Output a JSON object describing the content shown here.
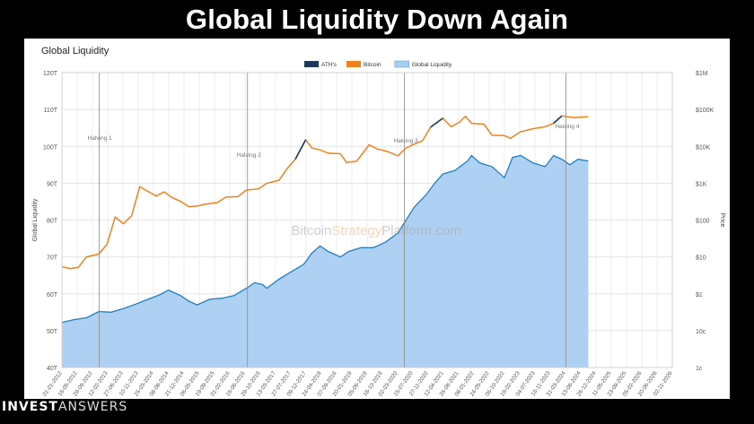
{
  "page": {
    "headline": "Global Liquidity Down Again",
    "brand_bold": "INVEST",
    "brand_light": "ANSWERS"
  },
  "chart_data": {
    "type": "area",
    "title": "Global Liquidity",
    "watermark_parts": [
      "Bitcoin",
      "Strategy",
      "Platform.com"
    ],
    "ylabel_left": "Global Liquidity",
    "ylabel_right": "Price",
    "y_left_ticks": [
      "40T",
      "50T",
      "60T",
      "70T",
      "80T",
      "90T",
      "100T",
      "110T",
      "120T"
    ],
    "y_left_range": [
      40,
      120
    ],
    "y_right_ticks": [
      "1c",
      "10c",
      "$1",
      "$10",
      "$100",
      "$1K",
      "$10K",
      "$100K",
      "$1M"
    ],
    "y_right_scale": "log",
    "x_tick_labels": [
      "01-01-2012",
      "16-05-2012",
      "29-09-2012",
      "12-02-2013",
      "27-06-2013",
      "10-11-2013",
      "25-03-2014",
      "08-08-2014",
      "21-12-2014",
      "06-05-2015",
      "19-09-2015",
      "01-02-2016",
      "16-06-2016",
      "29-10-2016",
      "13-03-2017",
      "27-07-2017",
      "09-12-2017",
      "24-04-2018",
      "07-09-2018",
      "20-01-2019",
      "05-06-2019",
      "18-10-2019",
      "02-03-2020",
      "15-07-2020",
      "27-11-2020",
      "12-04-2021",
      "26-08-2021",
      "08-01-2022",
      "24-05-2022",
      "06-10-2022",
      "19-02-2023",
      "04-07-2023",
      "16-11-2023",
      "31-03-2024",
      "13-08-2024",
      "26-12-2024",
      "11-05-2025",
      "23-09-2025",
      "05-02-2026",
      "20-06-2026",
      "02-11-2026"
    ],
    "legend": [
      {
        "name": "ATH's",
        "color": "#1b3a5c"
      },
      {
        "name": "Bitcoin",
        "color": "#f0821e"
      },
      {
        "name": "Global Liquidity",
        "color": "#a7cdf0"
      }
    ],
    "halvings": [
      {
        "label": "Halving 1",
        "date": 2012.91
      },
      {
        "label": "Halving 2",
        "date": 2016.53
      },
      {
        "label": "Halving 3",
        "date": 2020.36
      },
      {
        "label": "Halving 4",
        "date": 2024.3
      }
    ],
    "series": [
      {
        "name": "Global Liquidity",
        "unit": "T",
        "points": [
          [
            2012.0,
            52.2
          ],
          [
            2012.3,
            53.0
          ],
          [
            2012.6,
            53.5
          ],
          [
            2012.9,
            55.2
          ],
          [
            2013.2,
            55.0
          ],
          [
            2013.5,
            56.0
          ],
          [
            2013.8,
            57.2
          ],
          [
            2014.1,
            58.5
          ],
          [
            2014.4,
            59.8
          ],
          [
            2014.6,
            61.0
          ],
          [
            2014.9,
            59.5
          ],
          [
            2015.1,
            58.0
          ],
          [
            2015.3,
            57.0
          ],
          [
            2015.6,
            58.5
          ],
          [
            2015.9,
            58.8
          ],
          [
            2016.2,
            59.5
          ],
          [
            2016.5,
            61.5
          ],
          [
            2016.7,
            63.0
          ],
          [
            2016.9,
            62.5
          ],
          [
            2017.0,
            61.5
          ],
          [
            2017.3,
            64.0
          ],
          [
            2017.6,
            66.0
          ],
          [
            2017.9,
            68.0
          ],
          [
            2018.1,
            71.0
          ],
          [
            2018.3,
            73.0
          ],
          [
            2018.5,
            71.5
          ],
          [
            2018.8,
            70.0
          ],
          [
            2019.0,
            71.5
          ],
          [
            2019.3,
            72.5
          ],
          [
            2019.6,
            72.5
          ],
          [
            2019.9,
            74.0
          ],
          [
            2020.2,
            76.5
          ],
          [
            2020.4,
            80.0
          ],
          [
            2020.6,
            83.5
          ],
          [
            2020.9,
            87.0
          ],
          [
            2021.1,
            90.0
          ],
          [
            2021.3,
            92.5
          ],
          [
            2021.6,
            93.5
          ],
          [
            2021.9,
            96.0
          ],
          [
            2022.0,
            97.5
          ],
          [
            2022.2,
            95.5
          ],
          [
            2022.5,
            94.5
          ],
          [
            2022.8,
            91.5
          ],
          [
            2023.0,
            97.0
          ],
          [
            2023.2,
            97.5
          ],
          [
            2023.5,
            95.5
          ],
          [
            2023.8,
            94.5
          ],
          [
            2024.0,
            97.5
          ],
          [
            2024.2,
            96.5
          ],
          [
            2024.4,
            95.0
          ],
          [
            2024.6,
            96.5
          ],
          [
            2024.85,
            96.0
          ]
        ]
      },
      {
        "name": "Bitcoin",
        "unit": "USD",
        "points": [
          [
            2012.0,
            5.5
          ],
          [
            2012.2,
            4.8
          ],
          [
            2012.4,
            5.2
          ],
          [
            2012.6,
            10
          ],
          [
            2012.9,
            12
          ],
          [
            2013.1,
            22
          ],
          [
            2013.3,
            120
          ],
          [
            2013.5,
            80
          ],
          [
            2013.7,
            130
          ],
          [
            2013.9,
            800
          ],
          [
            2014.1,
            600
          ],
          [
            2014.3,
            450
          ],
          [
            2014.5,
            580
          ],
          [
            2014.7,
            400
          ],
          [
            2014.9,
            320
          ],
          [
            2015.1,
            230
          ],
          [
            2015.3,
            240
          ],
          [
            2015.5,
            270
          ],
          [
            2015.8,
            300
          ],
          [
            2016.0,
            420
          ],
          [
            2016.3,
            430
          ],
          [
            2016.5,
            650
          ],
          [
            2016.8,
            700
          ],
          [
            2017.0,
            1000
          ],
          [
            2017.3,
            1200
          ],
          [
            2017.5,
            2500
          ],
          [
            2017.7,
            4500
          ],
          [
            2017.95,
            15000
          ],
          [
            2018.1,
            9000
          ],
          [
            2018.3,
            8000
          ],
          [
            2018.5,
            6500
          ],
          [
            2018.8,
            6300
          ],
          [
            2018.95,
            3600
          ],
          [
            2019.2,
            4000
          ],
          [
            2019.5,
            11000
          ],
          [
            2019.7,
            8500
          ],
          [
            2019.95,
            7200
          ],
          [
            2020.2,
            5500
          ],
          [
            2020.4,
            9000
          ],
          [
            2020.6,
            11500
          ],
          [
            2020.8,
            14000
          ],
          [
            2021.0,
            33000
          ],
          [
            2021.3,
            58000
          ],
          [
            2021.5,
            34000
          ],
          [
            2021.7,
            45000
          ],
          [
            2021.85,
            65000
          ],
          [
            2022.0,
            42000
          ],
          [
            2022.3,
            40000
          ],
          [
            2022.5,
            20000
          ],
          [
            2022.8,
            19500
          ],
          [
            2022.95,
            16500
          ],
          [
            2023.2,
            25000
          ],
          [
            2023.5,
            30000
          ],
          [
            2023.8,
            34000
          ],
          [
            2024.0,
            42000
          ],
          [
            2024.2,
            67000
          ],
          [
            2024.5,
            60000
          ],
          [
            2024.85,
            64000
          ]
        ]
      }
    ]
  }
}
